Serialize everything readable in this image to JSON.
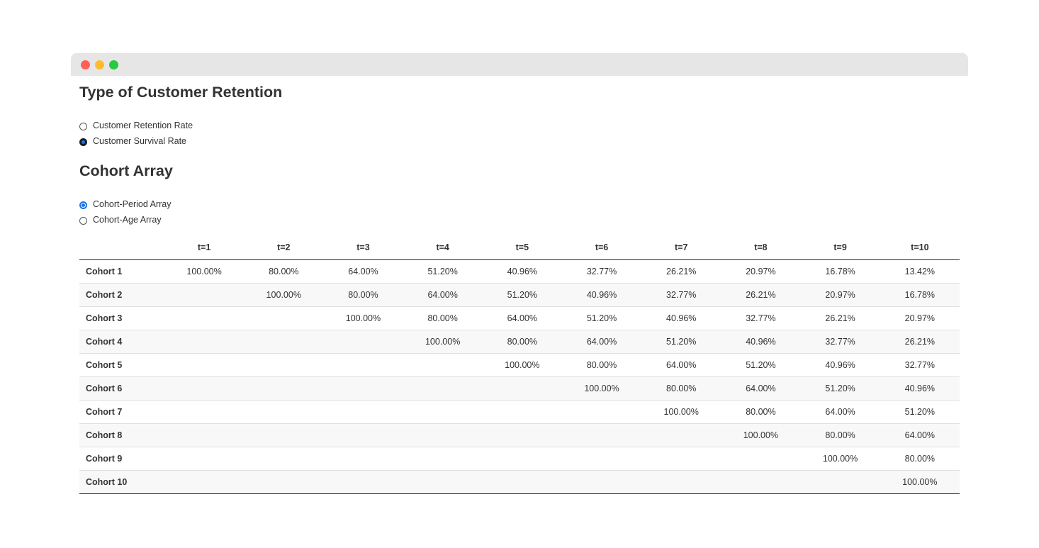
{
  "window": {
    "controls": [
      "close",
      "minimize",
      "maximize"
    ]
  },
  "retention": {
    "title": "Type of Customer Retention",
    "options": [
      {
        "label": "Customer Retention Rate",
        "checked": false
      },
      {
        "label": "Customer Survival Rate",
        "checked": true
      }
    ]
  },
  "cohort": {
    "title": "Cohort Array",
    "options": [
      {
        "label": "Cohort-Period Array",
        "checked": true
      },
      {
        "label": "Cohort-Age Array",
        "checked": false
      }
    ]
  },
  "table": {
    "headers": [
      "",
      "t=1",
      "t=2",
      "t=3",
      "t=4",
      "t=5",
      "t=6",
      "t=7",
      "t=8",
      "t=9",
      "t=10"
    ],
    "rows": [
      {
        "label": "Cohort 1",
        "cells": [
          "100.00%",
          "80.00%",
          "64.00%",
          "51.20%",
          "40.96%",
          "32.77%",
          "26.21%",
          "20.97%",
          "16.78%",
          "13.42%"
        ]
      },
      {
        "label": "Cohort 2",
        "cells": [
          "",
          "100.00%",
          "80.00%",
          "64.00%",
          "51.20%",
          "40.96%",
          "32.77%",
          "26.21%",
          "20.97%",
          "16.78%"
        ]
      },
      {
        "label": "Cohort 3",
        "cells": [
          "",
          "",
          "100.00%",
          "80.00%",
          "64.00%",
          "51.20%",
          "40.96%",
          "32.77%",
          "26.21%",
          "20.97%"
        ]
      },
      {
        "label": "Cohort 4",
        "cells": [
          "",
          "",
          "",
          "100.00%",
          "80.00%",
          "64.00%",
          "51.20%",
          "40.96%",
          "32.77%",
          "26.21%"
        ]
      },
      {
        "label": "Cohort 5",
        "cells": [
          "",
          "",
          "",
          "",
          "100.00%",
          "80.00%",
          "64.00%",
          "51.20%",
          "40.96%",
          "32.77%"
        ]
      },
      {
        "label": "Cohort 6",
        "cells": [
          "",
          "",
          "",
          "",
          "",
          "100.00%",
          "80.00%",
          "64.00%",
          "51.20%",
          "40.96%"
        ]
      },
      {
        "label": "Cohort 7",
        "cells": [
          "",
          "",
          "",
          "",
          "",
          "",
          "100.00%",
          "80.00%",
          "64.00%",
          "51.20%"
        ]
      },
      {
        "label": "Cohort 8",
        "cells": [
          "",
          "",
          "",
          "",
          "",
          "",
          "",
          "100.00%",
          "80.00%",
          "64.00%"
        ]
      },
      {
        "label": "Cohort 9",
        "cells": [
          "",
          "",
          "",
          "",
          "",
          "",
          "",
          "",
          "100.00%",
          "80.00%"
        ]
      },
      {
        "label": "Cohort 10",
        "cells": [
          "",
          "",
          "",
          "",
          "",
          "",
          "",
          "",
          "",
          "100.00%"
        ]
      }
    ]
  },
  "colors": {
    "close": "#ff5f57",
    "minimize": "#febc2e",
    "maximize": "#28c840",
    "accent": "#1a73e8"
  }
}
